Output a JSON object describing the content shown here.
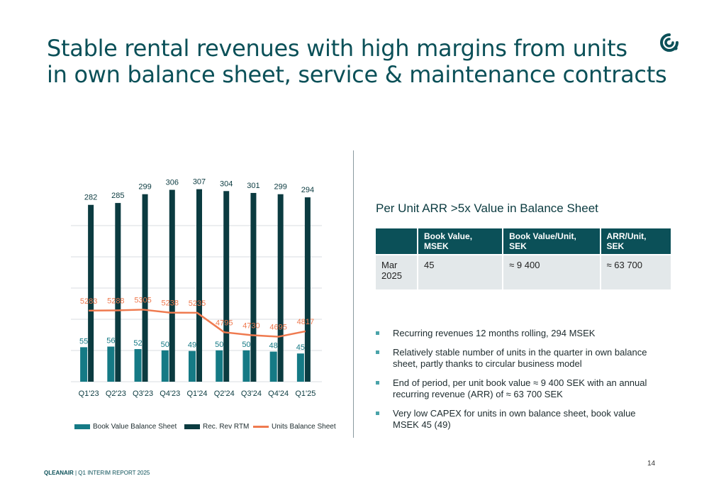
{
  "title": {
    "line1": "Stable rental revenues with high margins from units",
    "line2": "in own balance sheet, service & maintenance contracts"
  },
  "logo_icon": "qleanair-logo-icon",
  "colors": {
    "dark_teal": "#0b3b40",
    "teal": "#157a85",
    "orange": "#ef7a4f",
    "table_header": "#0b5058",
    "table_row": "#e3e8ea",
    "bullet": "#4aa3a9"
  },
  "chart_data": {
    "type": "bar",
    "categories": [
      "Q1'23",
      "Q2'23",
      "Q3'23",
      "Q4'23",
      "Q1'24",
      "Q2'24",
      "Q3'24",
      "Q4'24",
      "Q1'25"
    ],
    "series": [
      {
        "name": "Book Value Balance Sheet",
        "type": "bar",
        "values": [
          55,
          56,
          52,
          50,
          49,
          50,
          50,
          48,
          45
        ],
        "labels": [
          "55",
          "56",
          "52",
          "50",
          "49",
          "50",
          "50",
          "48",
          "45"
        ]
      },
      {
        "name": "Rec. Rev RTM",
        "type": "bar",
        "values": [
          282,
          285,
          299,
          306,
          307,
          304,
          301,
          299,
          294
        ],
        "labels": [
          "282",
          "285",
          "299",
          "306",
          "307",
          "304",
          "301",
          "299",
          "294"
        ]
      },
      {
        "name": "Units Balance Sheet",
        "type": "line",
        "values": [
          5283,
          5288,
          5305,
          5238,
          5235,
          4795,
          4730,
          4695,
          4817
        ],
        "labels": [
          "5283",
          "5288",
          "5305",
          "5238",
          "5235",
          "4795",
          "4730",
          "4695",
          "4817"
        ]
      }
    ],
    "ylim": [
      0,
      310
    ],
    "grid": true,
    "legend": "bottom"
  },
  "right": {
    "heading": "Per Unit ARR >5x Value in Balance Sheet",
    "table": {
      "headers": [
        "",
        "Book Value, MSEK",
        "Book Value/Unit, SEK",
        "ARR/Unit, SEK"
      ],
      "row": [
        "Mar 2025",
        "45",
        "≈ 9 400",
        "≈ 63 700"
      ]
    },
    "bullets": [
      "Recurring revenues 12 months rolling, 294 MSEK",
      "Relatively stable number of units in the quarter in own balance sheet, partly thanks to circular business model",
      "End of period, per unit book value ≈ 9 400 SEK with an annual recurring revenue (ARR) of ≈ 63  700 SEK",
      "Very low CAPEX for units in own balance sheet, book value MSEK 45 (49)"
    ]
  },
  "page_number": "14",
  "footer": {
    "brand": "QLEANAIR",
    "text": " | Q1 INTERIM REPORT 2025"
  }
}
